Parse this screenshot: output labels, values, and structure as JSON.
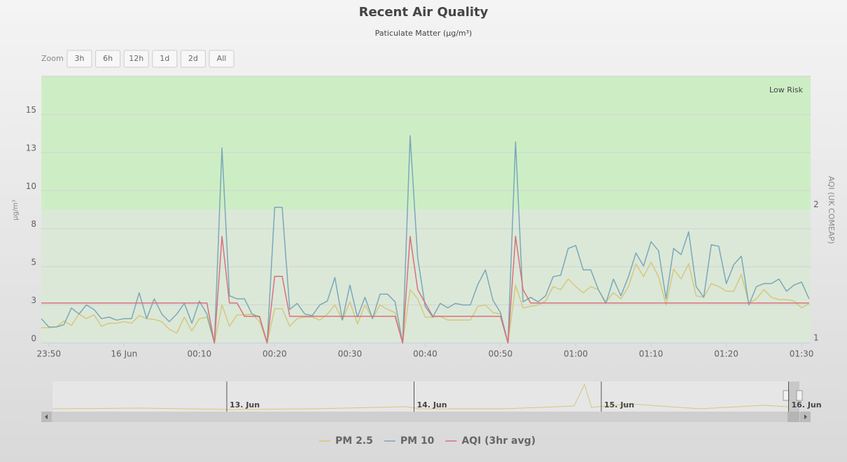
{
  "chart_data": {
    "type": "line",
    "title": "Recent Air Quality",
    "subtitle": "Paticulate Matter (µg/m³)",
    "y_label": "µg/m³",
    "y2_label": "AQI (UK COMEAP)",
    "range_selector": {
      "label": "Zoom",
      "buttons": [
        "3h",
        "6h",
        "12h",
        "1d",
        "2d",
        "All"
      ]
    },
    "navigator": {
      "labels": [
        "13. Jun",
        "14. Jun",
        "15. Jun",
        "16. Jun"
      ]
    },
    "plot_bands": [
      {
        "from": 2,
        "to": 3,
        "label": "Low Risk",
        "color": "#cdeec5"
      },
      {
        "from": 1,
        "to": 2,
        "color": "#dbe8d8"
      }
    ],
    "grid": true,
    "xlim": [
      -11,
      91.2
    ],
    "xticks": [
      {
        "value": -10,
        "label": "23:50"
      },
      {
        "value": 0,
        "label": "16 Jun"
      },
      {
        "value": 10,
        "label": "00:10"
      },
      {
        "value": 20,
        "label": "00:20"
      },
      {
        "value": 30,
        "label": "00:30"
      },
      {
        "value": 40,
        "label": "00:40"
      },
      {
        "value": 50,
        "label": "00:50"
      },
      {
        "value": 60,
        "label": "01:00"
      },
      {
        "value": 70,
        "label": "01:10"
      },
      {
        "value": 80,
        "label": "01:20"
      },
      {
        "value": 90,
        "label": "01:30"
      }
    ],
    "ylim": [
      0,
      17.5
    ],
    "yticks": [
      0,
      {
        "value": 2.5,
        "label": "3"
      },
      5,
      {
        "value": 7.5,
        "label": "8"
      },
      10,
      {
        "value": 12.5,
        "label": "13"
      },
      15
    ],
    "y2lim": [
      1,
      3
    ],
    "y2ticks": [
      1,
      2
    ],
    "x": [
      -11,
      -10,
      -9,
      -8,
      -7,
      -6,
      -5,
      -4,
      -3,
      -2,
      -1,
      0,
      1,
      2,
      3,
      4,
      5,
      6,
      7,
      8,
      9,
      10,
      11,
      12,
      13,
      14,
      15,
      16,
      17,
      18,
      19,
      20,
      21,
      22,
      23,
      24,
      25,
      26,
      27,
      28,
      29,
      30,
      31,
      32,
      33,
      34,
      35,
      36,
      37,
      38,
      39,
      40,
      41,
      42,
      43,
      44,
      45,
      46,
      47,
      48,
      49,
      50,
      51,
      52,
      53,
      54,
      55,
      56,
      57,
      58,
      59,
      60,
      61,
      62,
      63,
      64,
      65,
      66,
      67,
      68,
      69,
      70,
      71,
      72,
      73,
      74,
      75,
      76,
      77,
      78,
      79,
      80,
      81,
      82,
      83,
      84,
      85,
      86,
      87,
      88,
      89,
      90,
      91
    ],
    "series": [
      {
        "name": "PM 2.5",
        "color": "#d6c77c",
        "values": [
          1.0,
          1.0,
          1.05,
          1.45,
          1.15,
          1.9,
          1.6,
          1.85,
          1.1,
          1.3,
          1.3,
          1.4,
          1.3,
          1.8,
          1.6,
          1.55,
          1.4,
          0.9,
          0.65,
          1.7,
          0.8,
          1.6,
          1.7,
          0,
          2.5,
          1.1,
          1.85,
          1.85,
          1.9,
          1.4,
          0,
          2.25,
          2.25,
          1.1,
          1.6,
          1.7,
          1.7,
          1.5,
          1.9,
          2.5,
          1.5,
          2.7,
          1.25,
          2.5,
          1.6,
          2.5,
          2.2,
          2.0,
          0,
          3.5,
          2.9,
          1.7,
          1.7,
          1.75,
          1.5,
          1.5,
          1.5,
          1.5,
          2.4,
          2.5,
          2.0,
          1.9,
          0,
          3.8,
          2.3,
          2.4,
          2.5,
          2.75,
          3.7,
          3.5,
          4.2,
          3.7,
          3.3,
          3.7,
          3.5,
          2.7,
          3.3,
          2.9,
          3.7,
          5.2,
          4.35,
          5.3,
          4.35,
          2.5,
          4.85,
          4.2,
          5.2,
          3.1,
          3.0,
          3.9,
          3.7,
          3.4,
          3.4,
          4.5,
          2.6,
          2.9,
          3.5,
          3.0,
          2.85,
          2.85,
          2.75,
          2.3,
          2.6
        ]
      },
      {
        "name": "PM 10",
        "color": "#7ba8b8",
        "values": [
          1.6,
          1.05,
          1.05,
          1.2,
          2.3,
          1.9,
          2.5,
          2.2,
          1.6,
          1.7,
          1.5,
          1.6,
          1.6,
          3.3,
          1.6,
          2.9,
          1.9,
          1.4,
          1.9,
          2.6,
          1.3,
          2.75,
          1.9,
          0,
          12.8,
          3.1,
          2.9,
          2.9,
          1.9,
          1.7,
          0,
          8.9,
          8.9,
          2.2,
          2.6,
          1.9,
          1.8,
          2.5,
          2.75,
          4.3,
          1.5,
          3.8,
          1.7,
          3.0,
          1.6,
          3.2,
          3.2,
          2.7,
          0,
          13.6,
          5.6,
          2.4,
          1.7,
          2.6,
          2.3,
          2.6,
          2.5,
          2.5,
          3.85,
          4.8,
          2.8,
          2.0,
          0,
          13.2,
          2.7,
          3.0,
          2.7,
          3.1,
          4.35,
          4.45,
          6.2,
          6.4,
          4.8,
          4.8,
          3.5,
          2.6,
          4.2,
          3.1,
          4.35,
          5.9,
          5.05,
          6.65,
          6.05,
          2.9,
          6.2,
          5.8,
          7.3,
          3.7,
          3.0,
          6.45,
          6.35,
          3.9,
          5.15,
          5.7,
          2.5,
          3.7,
          3.9,
          3.9,
          4.2,
          3.4,
          3.8,
          4.0,
          2.9
        ]
      },
      {
        "name": "AQI (3hr avg)",
        "color": "#d9707c",
        "axis": "y2",
        "values": [
          1.3,
          1.3,
          1.3,
          1.3,
          1.3,
          1.3,
          1.3,
          1.3,
          1.3,
          1.3,
          1.3,
          1.3,
          1.3,
          1.3,
          1.3,
          1.3,
          1.3,
          1.3,
          1.3,
          1.3,
          1.3,
          1.3,
          1.3,
          1.0,
          1.8,
          1.3,
          1.3,
          1.2,
          1.2,
          1.2,
          1.0,
          1.5,
          1.5,
          1.2,
          1.2,
          1.2,
          1.2,
          1.2,
          1.2,
          1.2,
          1.2,
          1.2,
          1.2,
          1.2,
          1.2,
          1.2,
          1.2,
          1.2,
          1.0,
          1.8,
          1.4,
          1.3,
          1.2,
          1.2,
          1.2,
          1.2,
          1.2,
          1.2,
          1.2,
          1.2,
          1.2,
          1.2,
          1.0,
          1.8,
          1.4,
          1.3,
          1.3,
          1.3,
          1.3,
          1.3,
          1.3,
          1.3,
          1.3,
          1.3,
          1.3,
          1.3,
          1.3,
          1.3,
          1.3,
          1.3,
          1.3,
          1.3,
          1.3,
          1.3,
          1.3,
          1.3,
          1.3,
          1.3,
          1.3,
          1.3,
          1.3,
          1.3,
          1.3,
          1.3,
          1.3,
          1.3,
          1.3,
          1.3,
          1.3,
          1.3,
          1.3,
          1.3,
          1.3
        ]
      }
    ]
  }
}
